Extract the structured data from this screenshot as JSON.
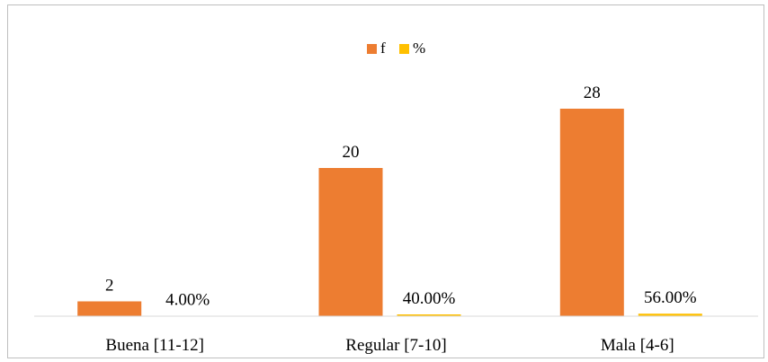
{
  "chart_data": {
    "type": "bar",
    "title": "",
    "xlabel": "",
    "ylabel": "",
    "categories": [
      "Buena [11-12]",
      "Regular [7-10]",
      "Mala [4-6]"
    ],
    "series": [
      {
        "name": "f",
        "color": "#ED7D31",
        "values": [
          2,
          20,
          28
        ],
        "labels": [
          "2",
          "20",
          "28"
        ]
      },
      {
        "name": "%",
        "color": "#FFC000",
        "values": [
          0.04,
          0.4,
          0.56
        ],
        "labels": [
          "4.00%",
          "40.00%",
          "56.00%"
        ]
      }
    ],
    "ylim": [
      0,
      33
    ],
    "grid": false,
    "legend_position": "top"
  }
}
